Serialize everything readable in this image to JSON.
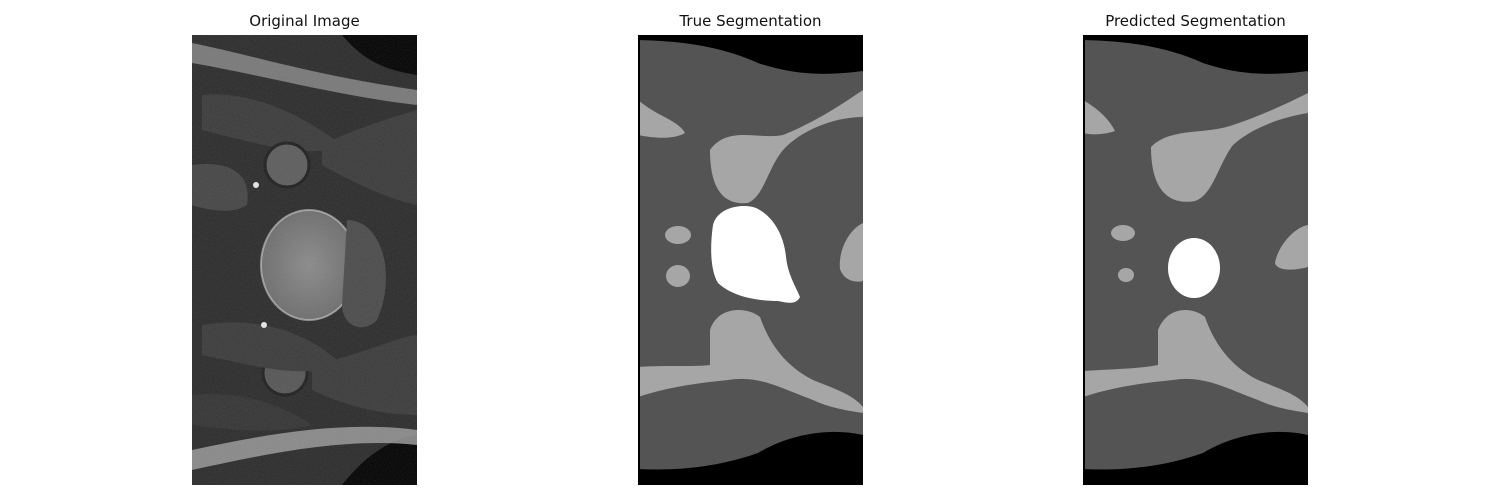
{
  "panels": [
    {
      "title": "Original Image"
    },
    {
      "title": "True Segmentation"
    },
    {
      "title": "Predicted Segmentation"
    }
  ],
  "colors": {
    "background": "#000000",
    "tissue": "#545454",
    "muscle": "#a6a6a6",
    "lesion": "#ffffff"
  }
}
